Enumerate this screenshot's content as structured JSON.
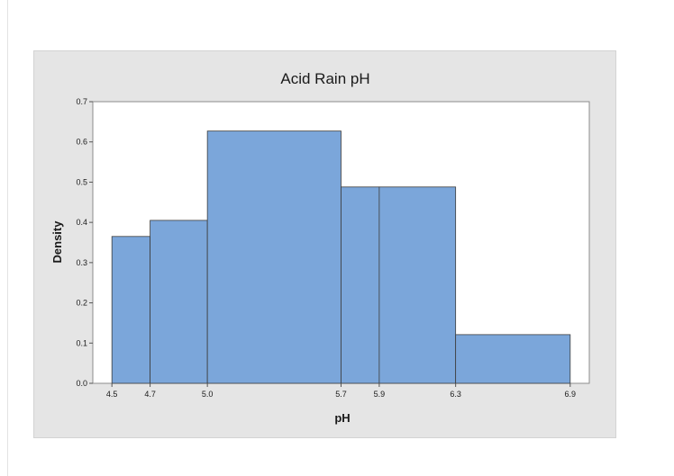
{
  "chart_data": {
    "type": "histogram",
    "title": "Acid Rain pH",
    "xlabel": "pH",
    "ylabel": "Density",
    "bin_edges": [
      4.5,
      4.7,
      5.0,
      5.7,
      5.9,
      6.3,
      6.9
    ],
    "x_ticks": [
      "4.5",
      "4.7",
      "5.0",
      "5.7",
      "5.9",
      "6.3",
      "6.9"
    ],
    "values": [
      0.365,
      0.405,
      0.627,
      0.488,
      0.488,
      0.121
    ],
    "xlim": [
      4.4,
      7.0
    ],
    "ylim": [
      0,
      0.7
    ],
    "y_ticks": [
      "0.0",
      "0.1",
      "0.2",
      "0.3",
      "0.4",
      "0.5",
      "0.6",
      "0.7"
    ],
    "grid": false,
    "legend": "none",
    "colors": {
      "bar_fill": "#7ba6da",
      "bar_stroke": "#3d3d3d",
      "plot_background": "#ffffff",
      "panel_background": "#e5e5e5"
    }
  }
}
